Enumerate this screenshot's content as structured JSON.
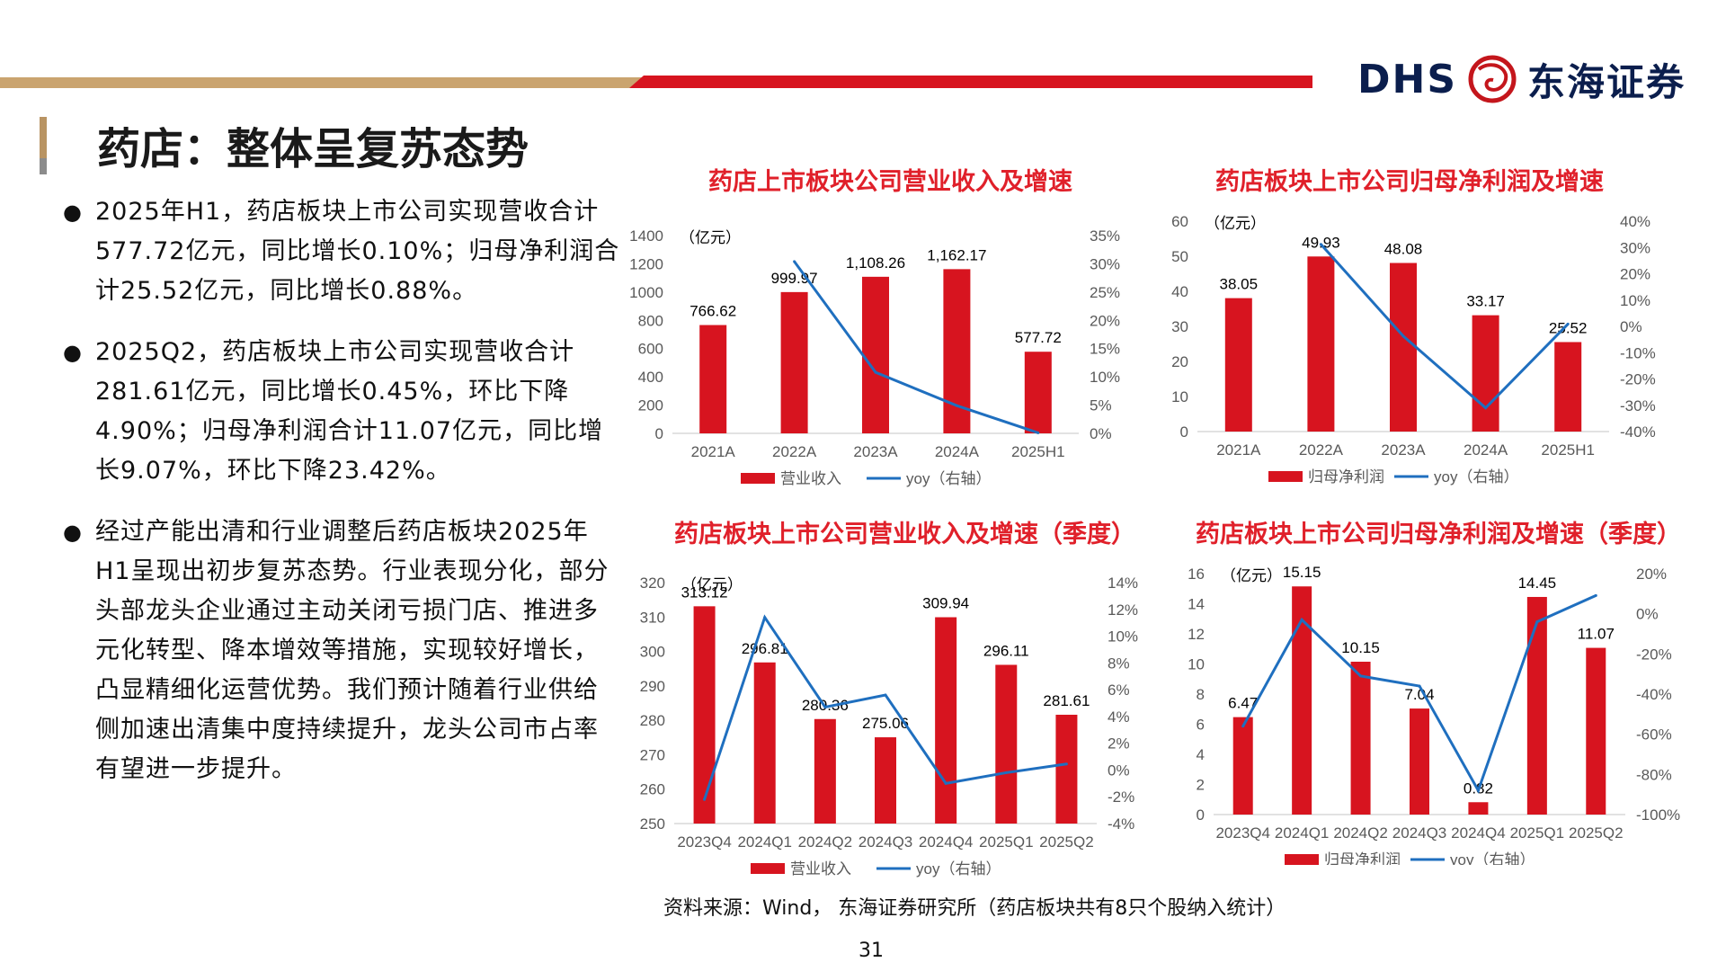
{
  "header": {
    "logo_latin": "DHS",
    "logo_cn": "东海证券",
    "accent_red": "#d7141f",
    "accent_gold": "#caa46f"
  },
  "page_title": "药店：整体呈复苏态势",
  "bullets": [
    "2025年H1，药店板块上市公司实现营收合计577.72亿元，同比增长0.10%；归母净利润合计25.52亿元，同比增长0.88%。",
    "2025Q2，药店板块上市公司实现营收合计281.61亿元，同比增长0.45%，环比下降4.90%；归母净利润合计11.07亿元，同比增长9.07%，环比下降23.42%。",
    "经过产能出清和行业调整后药店板块2025年H1呈现出初步复苏态势。行业表现分化，部分头部龙头企业通过主动关闭亏损门店、推进多元化转型、降本增效等措施，实现较好增长，凸显精细化运营优势。我们预计随着行业供给侧加速出清集中度持续提升，龙头公司市占率有望进一步提升。"
  ],
  "source": "资料来源：Wind，  东海证券研究所（药店板块共有8只个股纳入统计）",
  "page_number": "31",
  "chart_data": [
    {
      "id": "c1",
      "type": "bar",
      "title": "药店上市板块公司营业收入及增速",
      "unit_label": "（亿元）",
      "categories": [
        "2021A",
        "2022A",
        "2023A",
        "2024A",
        "2025H1"
      ],
      "bar_series": {
        "name": "营业收入",
        "values": [
          766.62,
          999.97,
          1108.26,
          1162.17,
          577.72
        ],
        "labels": [
          "766.62",
          "999.97",
          "1,108.26",
          "1,162.17",
          "577.72"
        ]
      },
      "line_series": {
        "name": "yoy（右轴）",
        "values": [
          null,
          30.4,
          10.8,
          4.9,
          0.1
        ]
      },
      "left_axis": {
        "min": 0,
        "max": 1400,
        "step": 200,
        "ticks": [
          "0",
          "200",
          "400",
          "600",
          "800",
          "1000",
          "1200",
          "1400"
        ]
      },
      "right_axis": {
        "min": 0,
        "max": 35,
        "step": 5,
        "ticks": [
          "0%",
          "5%",
          "10%",
          "15%",
          "20%",
          "25%",
          "30%",
          "35%"
        ]
      }
    },
    {
      "id": "c2",
      "type": "bar",
      "title": "药店板块上市公司归母净利润及增速",
      "unit_label": "（亿元）",
      "categories": [
        "2021A",
        "2022A",
        "2023A",
        "2024A",
        "2025H1"
      ],
      "bar_series": {
        "name": "归母净利润",
        "values": [
          38.05,
          49.93,
          48.08,
          33.17,
          25.52
        ],
        "labels": [
          "38.05",
          "49.93",
          "48.08",
          "33.17",
          "25.52"
        ]
      },
      "line_series": {
        "name": "yoy（右轴）",
        "values": [
          null,
          31.2,
          -3.7,
          -31.0,
          0.88
        ]
      },
      "left_axis": {
        "min": 0,
        "max": 60,
        "step": 10,
        "ticks": [
          "0",
          "10",
          "20",
          "30",
          "40",
          "50",
          "60"
        ]
      },
      "right_axis": {
        "min": -40,
        "max": 40,
        "step": 10,
        "ticks": [
          "-40%",
          "-30%",
          "-20%",
          "-10%",
          "0%",
          "10%",
          "20%",
          "30%",
          "40%"
        ]
      }
    },
    {
      "id": "c3",
      "type": "bar",
      "title": "药店板块上市公司营业收入及增速（季度）",
      "unit_label": "（亿元）",
      "categories": [
        "2023Q4",
        "2024Q1",
        "2024Q2",
        "2024Q3",
        "2024Q4",
        "2025Q1",
        "2025Q2"
      ],
      "bar_series": {
        "name": "营业收入",
        "values": [
          313.12,
          296.81,
          280.36,
          275.06,
          309.94,
          296.11,
          281.61
        ],
        "labels": [
          "313.12",
          "296.81",
          "280.36",
          "275.06",
          "309.94",
          "296.11",
          "281.61"
        ]
      },
      "line_series": {
        "name": "yoy（右轴）",
        "values": [
          -2.2,
          11.4,
          4.7,
          5.6,
          -1.0,
          -0.2,
          0.45
        ]
      },
      "left_axis": {
        "min": 250,
        "max": 320,
        "step": 10,
        "ticks": [
          "250",
          "260",
          "270",
          "280",
          "290",
          "300",
          "310",
          "320"
        ]
      },
      "right_axis": {
        "min": -4,
        "max": 14,
        "step": 2,
        "ticks": [
          "-4%",
          "-2%",
          "0%",
          "2%",
          "4%",
          "6%",
          "8%",
          "10%",
          "12%",
          "14%"
        ]
      }
    },
    {
      "id": "c4",
      "type": "bar",
      "title": "药店板块上市公司归母净利润及增速（季度）",
      "unit_label": "（亿元）",
      "categories": [
        "2023Q4",
        "2024Q1",
        "2024Q2",
        "2024Q3",
        "2024Q4",
        "2025Q1",
        "2025Q2"
      ],
      "bar_series": {
        "name": "归母净利润",
        "values": [
          6.47,
          15.15,
          10.15,
          7.04,
          0.82,
          14.45,
          11.07
        ],
        "labels": [
          "6.47",
          "15.15",
          "10.15",
          "7.04",
          "0.82",
          "14.45",
          "11.07"
        ]
      },
      "line_series": {
        "name": "yoy（右轴）",
        "values": [
          -56,
          -3,
          -31,
          -36,
          -88,
          -4,
          9.07
        ]
      },
      "left_axis": {
        "min": 0,
        "max": 16,
        "step": 2,
        "ticks": [
          "0",
          "2",
          "4",
          "6",
          "8",
          "10",
          "12",
          "14",
          "16"
        ]
      },
      "right_axis": {
        "min": -100,
        "max": 20,
        "step": 20,
        "ticks": [
          "-100%",
          "-80%",
          "-60%",
          "-40%",
          "-20%",
          "0%",
          "20%"
        ]
      }
    }
  ],
  "colors": {
    "bar": "#d7141f",
    "line": "#1f6fbf",
    "axis": "#d9d9d9",
    "tick_text": "#595959",
    "title": "#e0202a"
  }
}
